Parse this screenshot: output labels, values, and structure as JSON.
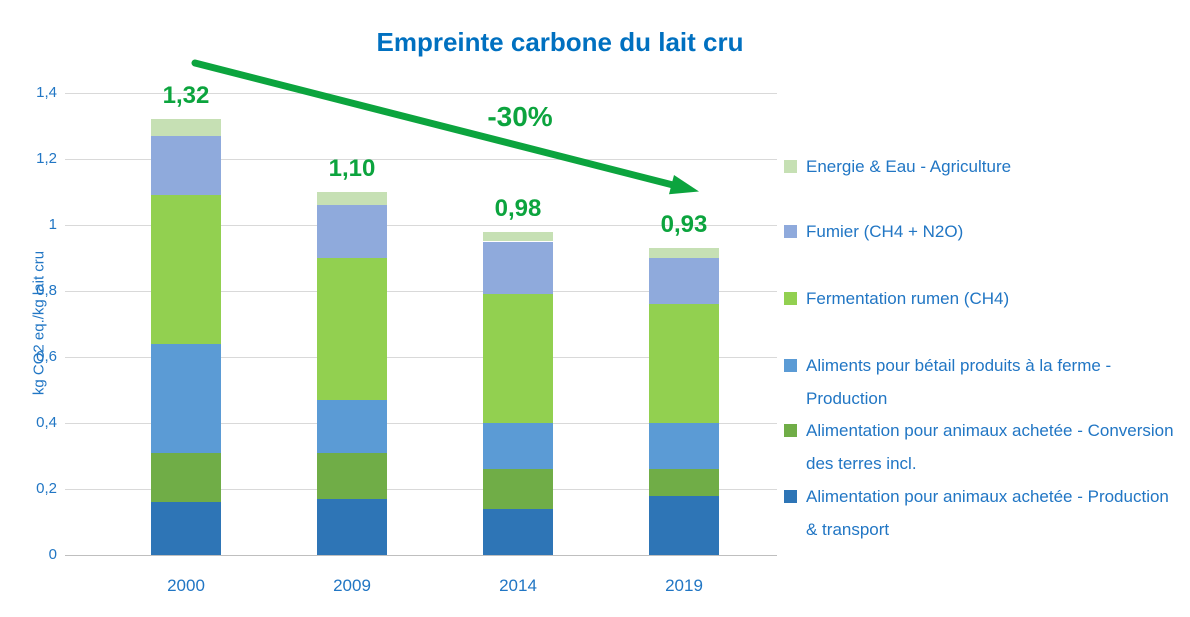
{
  "chart_data": {
    "type": "bar",
    "stacked": true,
    "title": "Empreinte carbone du lait cru",
    "ylabel": "kg CO2 eq./kg lait cru",
    "xlabel": "",
    "categories": [
      "2000",
      "2009",
      "2014",
      "2019"
    ],
    "series": [
      {
        "name": "Alimentation pour animaux achetée - Production & transport",
        "color": "#2E75B6",
        "values": [
          0.16,
          0.17,
          0.14,
          0.18
        ]
      },
      {
        "name": "Alimentation pour animaux achetée - Conversion des terres incl.",
        "color": "#70AD47",
        "values": [
          0.15,
          0.14,
          0.12,
          0.08
        ]
      },
      {
        "name": "Aliments pour bétail produits à la ferme - Production",
        "color": "#5B9BD5",
        "values": [
          0.33,
          0.16,
          0.14,
          0.14
        ]
      },
      {
        "name": "Fermentation rumen (CH4)",
        "color": "#92D050",
        "values": [
          0.45,
          0.43,
          0.39,
          0.36
        ]
      },
      {
        "name": "Fumier (CH4 + N2O)",
        "color": "#8FAADC",
        "values": [
          0.18,
          0.16,
          0.16,
          0.14
        ]
      },
      {
        "name": "Energie & Eau - Agriculture",
        "color": "#C6E0B4",
        "values": [
          0.05,
          0.04,
          0.03,
          0.03
        ]
      }
    ],
    "totals": [
      1.32,
      1.1,
      0.98,
      0.93
    ],
    "total_labels": [
      "1,32",
      "1,10",
      "0,98",
      "0,93"
    ],
    "yticks": [
      {
        "value": 0,
        "label": "0"
      },
      {
        "value": 0.2,
        "label": "0,2"
      },
      {
        "value": 0.4,
        "label": "0,4"
      },
      {
        "value": 0.6,
        "label": "0,6"
      },
      {
        "value": 0.8,
        "label": "0,8"
      },
      {
        "value": 1,
        "label": "1"
      },
      {
        "value": 1.2,
        "label": "1,2"
      },
      {
        "value": 1.4,
        "label": "1,4"
      }
    ],
    "ylim": [
      0,
      1.4
    ],
    "grid": true,
    "legend_position": "right",
    "legend_order_top_to_bottom": [
      "Energie & Eau - Agriculture",
      "Fumier (CH4 + N2O)",
      "Fermentation rumen (CH4)",
      "Aliments pour bétail produits à la ferme - Production",
      "Alimentation pour animaux achetée - Conversion des terres incl.",
      "Alimentation pour animaux achetée - Production & transport"
    ],
    "annotation": {
      "text": "-30%"
    },
    "colors": {
      "title_text": "#0070C0",
      "axis_text": "#2176C4",
      "value_label_text": "#0CA43E",
      "arrow": "#0CA43E",
      "gridline": "#D9D9D9",
      "axis_line": "#BFBFBF"
    }
  }
}
